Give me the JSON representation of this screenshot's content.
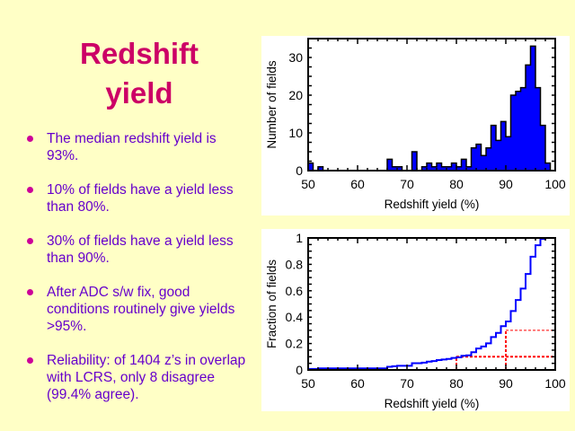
{
  "slide": {
    "title_line1": "Redshift",
    "title_line2": "yield",
    "bullets": [
      "The median redshift yield is 93%.",
      "10% of fields have a yield less than 80%.",
      "30% of fields have a yield less than 90%.",
      "After ADC s/w fix, good conditions routinely give yields >95%.",
      "Reliability: of 1404 z’s in overlap with LCRS, only 8 disagree (99.4% agree)."
    ]
  },
  "colors": {
    "bars": "#0000FF",
    "marker": "#FF0000",
    "title": "#CC0066",
    "text": "#6600CC"
  },
  "chart_data": [
    {
      "type": "bar",
      "title": "",
      "xlabel": "Redshift yield (%)",
      "ylabel": "Number of fields",
      "xlim": [
        50,
        100
      ],
      "ylim": [
        0,
        35
      ],
      "xticks": [
        "50",
        "60",
        "70",
        "80",
        "90",
        "100"
      ],
      "yticks": [
        "0",
        "10",
        "20",
        "30"
      ],
      "bin_width": 1,
      "bin_starts": [
        50,
        51,
        52,
        53,
        54,
        55,
        56,
        57,
        58,
        59,
        60,
        61,
        62,
        63,
        64,
        65,
        66,
        67,
        68,
        69,
        70,
        71,
        72,
        73,
        74,
        75,
        76,
        77,
        78,
        79,
        80,
        81,
        82,
        83,
        84,
        85,
        86,
        87,
        88,
        89,
        90,
        91,
        92,
        93,
        94,
        95,
        96,
        97,
        98,
        99
      ],
      "values": [
        2,
        0,
        1,
        0,
        0,
        0,
        0,
        0,
        0,
        0,
        0,
        0,
        0,
        0,
        0,
        0,
        3,
        1,
        1,
        0,
        0,
        5,
        0,
        1,
        2,
        1,
        2,
        1,
        1,
        2,
        1,
        3,
        1,
        6,
        7,
        4,
        6,
        12,
        8,
        13,
        9,
        20,
        21,
        22,
        28,
        33,
        22,
        12,
        2,
        0
      ]
    },
    {
      "type": "line",
      "title": "",
      "xlabel": "Redshift yield (%)",
      "ylabel": "Fraction of fields",
      "xlim": [
        50,
        100
      ],
      "ylim": [
        0,
        1
      ],
      "xticks": [
        "50",
        "60",
        "70",
        "80",
        "90",
        "100"
      ],
      "yticks": [
        "0",
        "0.2",
        "0.4",
        "0.6",
        "0.8",
        "1"
      ],
      "series": [
        {
          "name": "cumulative fraction",
          "derived_from": "histogram",
          "style": "step"
        }
      ],
      "annotations": [
        {
          "x": 80,
          "y": 0.1,
          "style": "red dotted"
        },
        {
          "x": 90,
          "y": 0.3,
          "style": "red dotted"
        }
      ]
    }
  ]
}
